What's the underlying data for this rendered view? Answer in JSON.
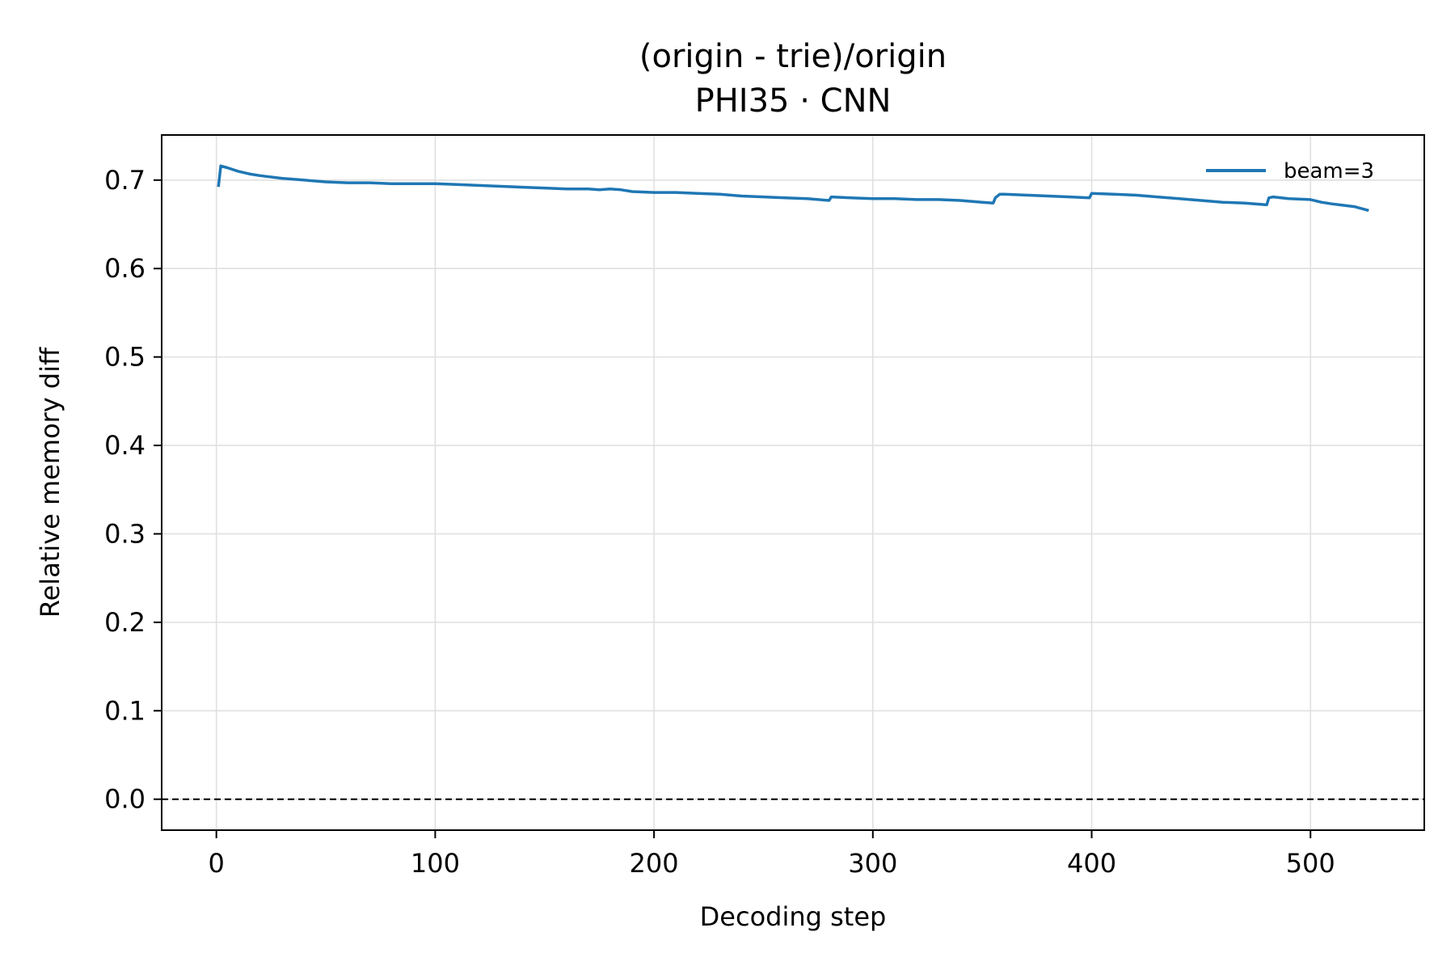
{
  "chart_data": {
    "type": "line",
    "title": "(origin - trie)/origin",
    "subtitle": "PHI35 · CNN",
    "xlabel": "Decoding step",
    "ylabel": "Relative memory diff",
    "xlim": [
      -25,
      552
    ],
    "ylim": [
      -0.035,
      0.751
    ],
    "xticks": [
      0,
      100,
      200,
      300,
      400,
      500
    ],
    "yticks": [
      0.0,
      0.1,
      0.2,
      0.3,
      0.4,
      0.5,
      0.6,
      0.7
    ],
    "xtick_labels": [
      "0",
      "100",
      "200",
      "300",
      "400",
      "500"
    ],
    "ytick_labels": [
      "0.0",
      "0.1",
      "0.2",
      "0.3",
      "0.4",
      "0.5",
      "0.6",
      "0.7"
    ],
    "grid": true,
    "legend_position": "top-right",
    "reference_line": {
      "y": 0.0,
      "style": "dashed",
      "color": "#000000"
    },
    "series": [
      {
        "name": "beam=3",
        "color": "#1f77b4",
        "x": [
          1,
          2,
          5,
          10,
          15,
          20,
          30,
          40,
          50,
          60,
          70,
          80,
          90,
          100,
          110,
          120,
          130,
          140,
          150,
          160,
          170,
          175,
          180,
          185,
          190,
          200,
          210,
          220,
          230,
          235,
          240,
          250,
          260,
          270,
          280,
          281,
          290,
          300,
          310,
          320,
          330,
          340,
          350,
          355,
          356,
          358,
          360,
          370,
          380,
          390,
          399,
          400,
          410,
          420,
          430,
          440,
          450,
          460,
          470,
          480,
          481,
          483,
          490,
          500,
          505,
          510,
          520,
          526
        ],
        "y": [
          0.694,
          0.716,
          0.714,
          0.71,
          0.707,
          0.705,
          0.702,
          0.7,
          0.698,
          0.697,
          0.697,
          0.696,
          0.696,
          0.696,
          0.695,
          0.694,
          0.693,
          0.692,
          0.691,
          0.69,
          0.69,
          0.689,
          0.69,
          0.689,
          0.687,
          0.686,
          0.686,
          0.685,
          0.684,
          0.683,
          0.682,
          0.681,
          0.68,
          0.679,
          0.677,
          0.681,
          0.68,
          0.679,
          0.679,
          0.678,
          0.678,
          0.677,
          0.675,
          0.674,
          0.68,
          0.684,
          0.684,
          0.683,
          0.682,
          0.681,
          0.68,
          0.685,
          0.684,
          0.683,
          0.681,
          0.679,
          0.677,
          0.675,
          0.674,
          0.672,
          0.68,
          0.681,
          0.679,
          0.678,
          0.675,
          0.673,
          0.67,
          0.666
        ]
      }
    ]
  }
}
